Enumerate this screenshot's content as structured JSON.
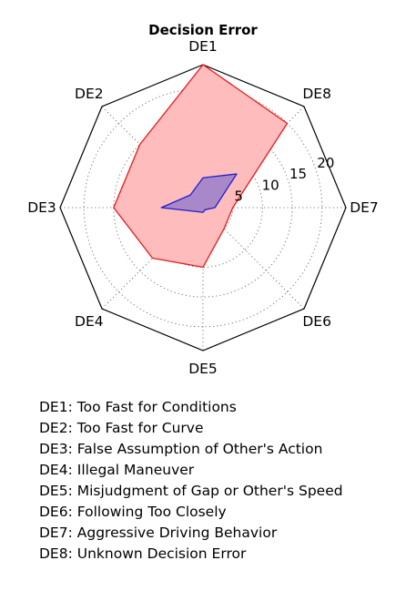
{
  "chart_data": {
    "type": "radar",
    "title": "Decision Error",
    "axes": [
      "DE1",
      "DE2",
      "DE3",
      "DE4",
      "DE5",
      "DE6",
      "DE7",
      "DE8"
    ],
    "rlim": [
      0,
      24
    ],
    "rticks": [
      5,
      10,
      15,
      20
    ],
    "grid": true,
    "series": [
      {
        "color": "#e8191c",
        "fill": "#ffbcbc",
        "values": [
          24,
          15,
          15,
          12,
          10,
          5,
          5,
          20
        ]
      },
      {
        "color": "#1f1fcc",
        "fill": "#9a7fcc",
        "values": [
          5,
          3,
          7,
          1,
          0.8,
          0.5,
          2,
          8
        ]
      }
    ]
  },
  "legend": [
    {
      "code": "DE1",
      "desc": "Too Fast for Conditions"
    },
    {
      "code": "DE2",
      "desc": "Too Fast for Curve"
    },
    {
      "code": "DE3",
      "desc": "False Assumption of Other's Action"
    },
    {
      "code": "DE4",
      "desc": "Illegal Maneuver"
    },
    {
      "code": "DE5",
      "desc": "Misjudgment of Gap or Other's Speed"
    },
    {
      "code": "DE6",
      "desc": "Following Too Closely"
    },
    {
      "code": "DE7",
      "desc": "Aggressive Driving Behavior"
    },
    {
      "code": "DE8",
      "desc": "Unknown Decision Error"
    }
  ]
}
